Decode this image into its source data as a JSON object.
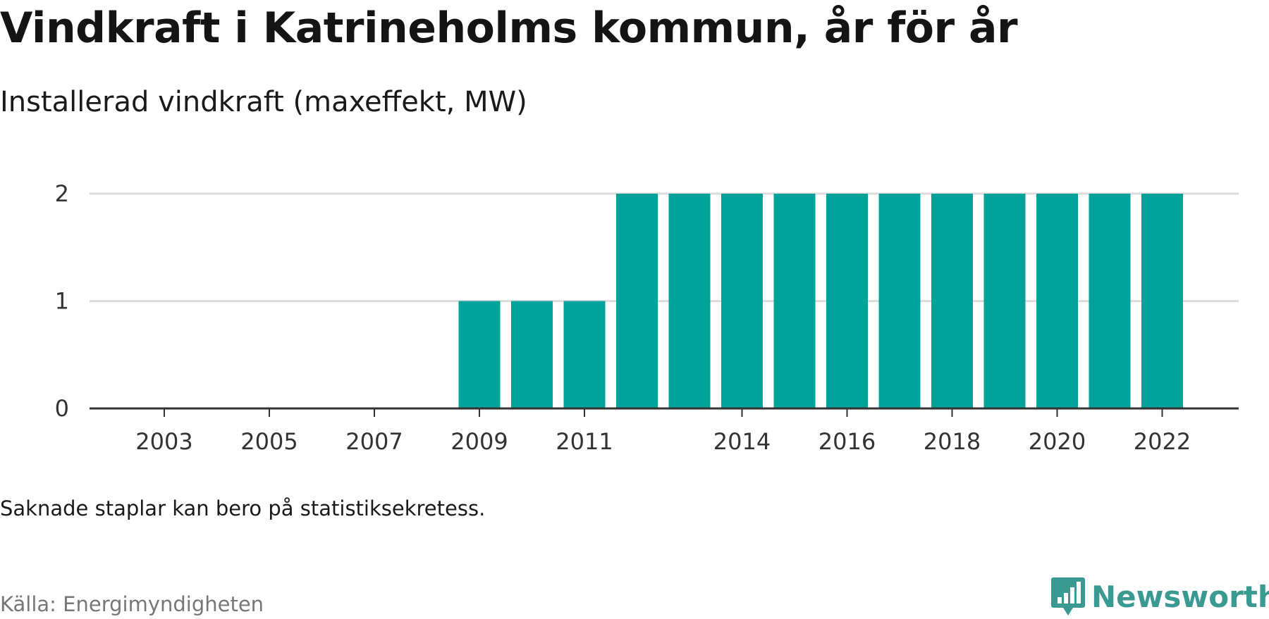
{
  "header": {
    "title": "Vindkraft i Katrineholms kommun, år för år",
    "subtitle": "Installerad vindkraft (maxeffekt, MW)"
  },
  "footer": {
    "note": "Saknade staplar kan bero på statistiksekretess.",
    "source": "Källa: Energimyndigheten",
    "brand": "Newsworthy",
    "brand_icon": "newsworthy-logo-icon"
  },
  "colors": {
    "bar": "#00a39a",
    "grid": "#dddddd",
    "axis": "#333333",
    "brand": "#3a9a92"
  },
  "chart_data": {
    "type": "bar",
    "title": "Vindkraft i Katrineholms kommun, år för år",
    "subtitle": "Installerad vindkraft (maxeffekt, MW)",
    "xlabel": "",
    "ylabel": "",
    "categories": [
      "2002",
      "2003",
      "2004",
      "2005",
      "2006",
      "2007",
      "2008",
      "2009",
      "2010",
      "2011",
      "2012",
      "2013",
      "2014",
      "2015",
      "2016",
      "2017",
      "2018",
      "2019",
      "2020",
      "2021",
      "2022"
    ],
    "values": [
      0,
      0,
      0,
      0,
      0,
      0,
      0,
      1,
      1,
      1,
      2,
      2,
      2,
      2,
      2,
      2,
      2,
      2,
      2,
      2,
      2
    ],
    "x_tick_labels": [
      "2003",
      "2005",
      "2007",
      "2009",
      "2011",
      "2014",
      "2016",
      "2018",
      "2020",
      "2022"
    ],
    "y_ticks": [
      0,
      1,
      2
    ],
    "ylim": [
      0,
      2
    ],
    "grid": true,
    "legend": "none"
  }
}
